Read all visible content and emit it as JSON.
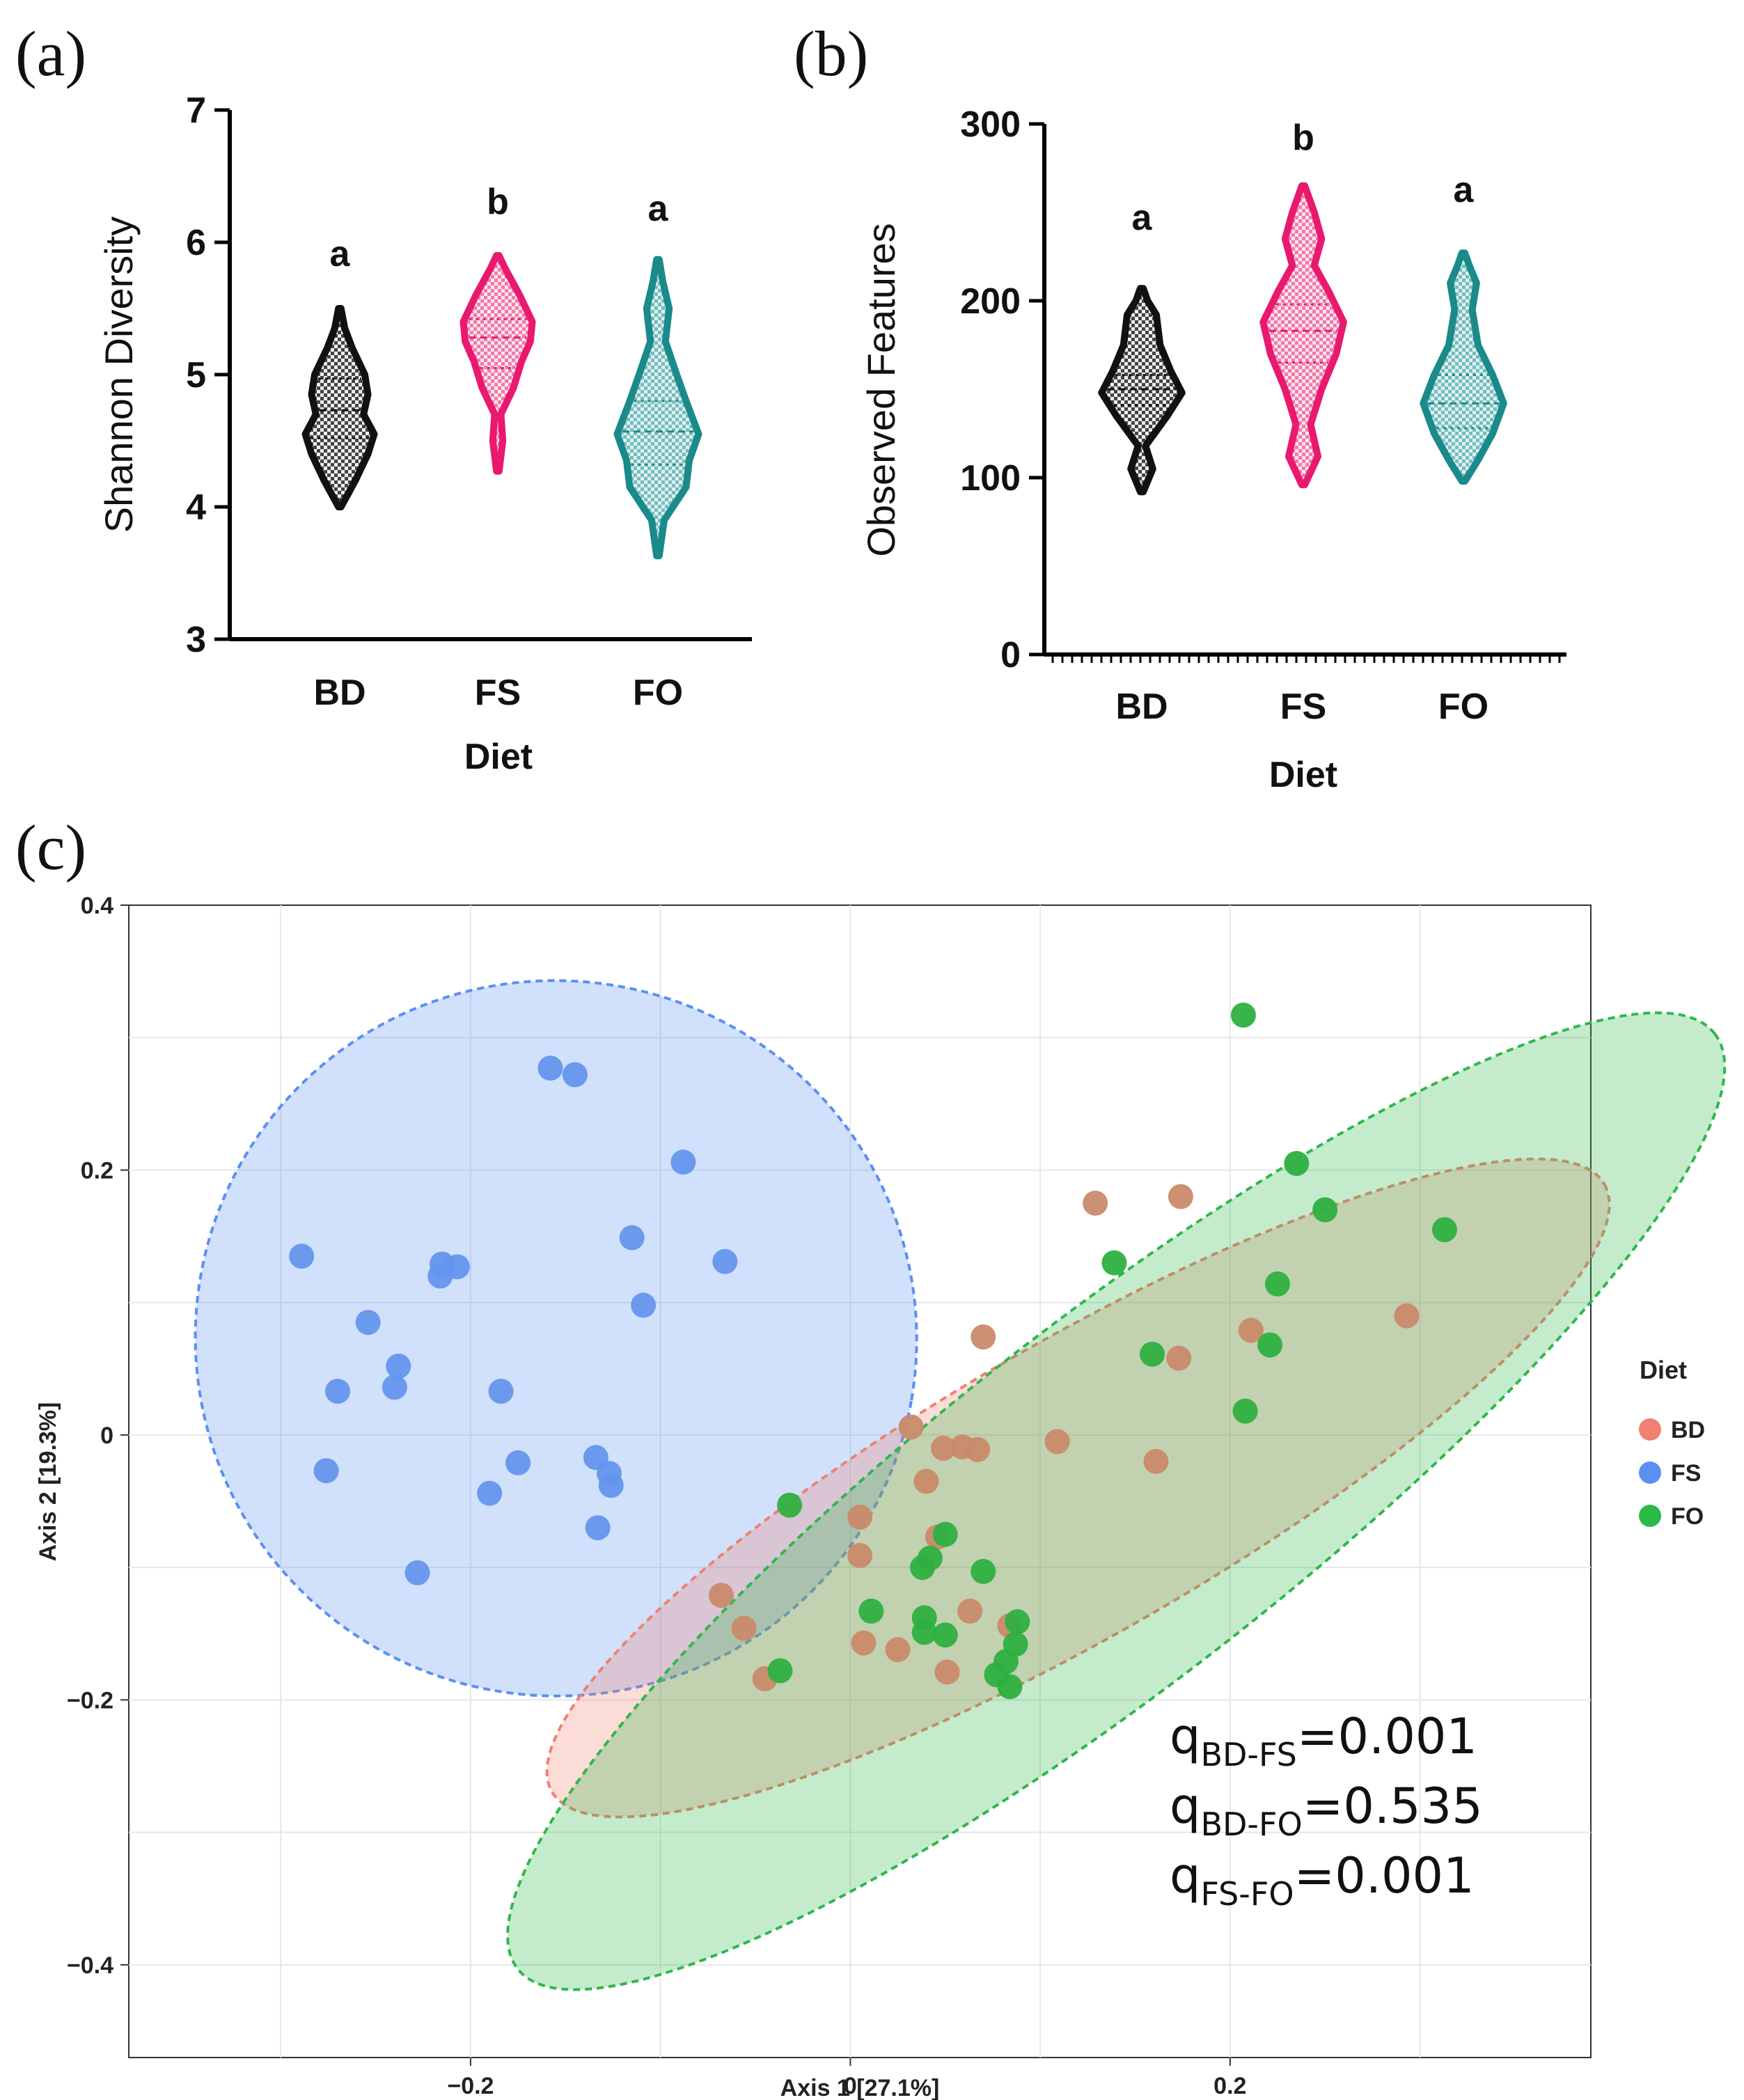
{
  "panels": {
    "a": "(a)",
    "b": "(b)",
    "c": "(c)"
  },
  "colors": {
    "BD_violin": "#111111",
    "FS_violin": "#e8196e",
    "FO_violin": "#1a8a8a",
    "BD_pcoa": "#f08070",
    "FS_pcoa": "#5b8ff2",
    "FO_pcoa": "#2db84a",
    "BD_point": "#c98a6a",
    "FS_point": "#6495ed",
    "FO_point": "#2eb040"
  },
  "chart_data": [
    {
      "type": "violin",
      "panel": "a",
      "ylabel": "Shannon Diversity",
      "xlabel": "Diet",
      "ylim": [
        3,
        7
      ],
      "yticks": [
        "3",
        "4",
        "5",
        "6",
        "7"
      ],
      "categories": [
        "BD",
        "FS",
        "FO"
      ],
      "significance": [
        "a",
        "b",
        "a"
      ],
      "series": [
        {
          "name": "BD",
          "min": 4.0,
          "max": 5.5,
          "median": 4.73,
          "q1": 4.52,
          "q3": 4.97,
          "profile": [
            [
              4.0,
              0.02
            ],
            [
              4.2,
              0.25
            ],
            [
              4.4,
              0.45
            ],
            [
              4.55,
              0.55
            ],
            [
              4.7,
              0.38
            ],
            [
              4.85,
              0.45
            ],
            [
              5.0,
              0.4
            ],
            [
              5.2,
              0.2
            ],
            [
              5.35,
              0.08
            ],
            [
              5.5,
              0.02
            ]
          ]
        },
        {
          "name": "FS",
          "min": 4.27,
          "max": 5.9,
          "median": 5.28,
          "q1": 5.05,
          "q3": 5.42,
          "profile": [
            [
              4.27,
              0.02
            ],
            [
              4.5,
              0.08
            ],
            [
              4.7,
              0.05
            ],
            [
              4.9,
              0.25
            ],
            [
              5.1,
              0.38
            ],
            [
              5.25,
              0.52
            ],
            [
              5.4,
              0.55
            ],
            [
              5.6,
              0.35
            ],
            [
              5.8,
              0.12
            ],
            [
              5.9,
              0.02
            ]
          ]
        },
        {
          "name": "FO",
          "min": 3.63,
          "max": 5.87,
          "median": 4.57,
          "q1": 4.32,
          "q3": 4.8,
          "profile": [
            [
              3.63,
              0.02
            ],
            [
              3.9,
              0.1
            ],
            [
              4.15,
              0.45
            ],
            [
              4.35,
              0.5
            ],
            [
              4.55,
              0.65
            ],
            [
              4.8,
              0.45
            ],
            [
              5.0,
              0.3
            ],
            [
              5.25,
              0.12
            ],
            [
              5.5,
              0.18
            ],
            [
              5.7,
              0.08
            ],
            [
              5.87,
              0.02
            ]
          ]
        }
      ]
    },
    {
      "type": "violin",
      "panel": "b",
      "ylabel": "Observed Features",
      "xlabel": "Diet",
      "ylim": [
        0,
        300
      ],
      "yticks": [
        "0",
        "100",
        "200",
        "300"
      ],
      "categories": [
        "BD",
        "FS",
        "FO"
      ],
      "significance": [
        "a",
        "b",
        "a"
      ],
      "series": [
        {
          "name": "BD",
          "min": 92,
          "max": 207,
          "median": 150,
          "q1": 141,
          "q3": 158,
          "profile": [
            [
              92,
              0.02
            ],
            [
              105,
              0.15
            ],
            [
              118,
              0.05
            ],
            [
              135,
              0.35
            ],
            [
              148,
              0.55
            ],
            [
              160,
              0.4
            ],
            [
              175,
              0.25
            ],
            [
              192,
              0.2
            ],
            [
              200,
              0.08
            ],
            [
              207,
              0.02
            ]
          ]
        },
        {
          "name": "FS",
          "min": 96,
          "max": 265,
          "median": 183,
          "q1": 165,
          "q3": 198,
          "profile": [
            [
              96,
              0.02
            ],
            [
              112,
              0.2
            ],
            [
              130,
              0.1
            ],
            [
              150,
              0.25
            ],
            [
              170,
              0.45
            ],
            [
              188,
              0.55
            ],
            [
              205,
              0.35
            ],
            [
              220,
              0.15
            ],
            [
              235,
              0.25
            ],
            [
              250,
              0.15
            ],
            [
              265,
              0.02
            ]
          ]
        },
        {
          "name": "FO",
          "min": 98,
          "max": 227,
          "median": 142,
          "q1": 128,
          "q3": 158,
          "profile": [
            [
              98,
              0.02
            ],
            [
              110,
              0.2
            ],
            [
              125,
              0.4
            ],
            [
              142,
              0.55
            ],
            [
              158,
              0.4
            ],
            [
              175,
              0.2
            ],
            [
              195,
              0.12
            ],
            [
              210,
              0.18
            ],
            [
              220,
              0.08
            ],
            [
              227,
              0.02
            ]
          ]
        }
      ]
    },
    {
      "type": "scatter",
      "panel": "c",
      "xlabel": "Axis 1 [27.1%]",
      "ylabel": "Axis 2 [19.3%]",
      "xlim": [
        -0.38,
        0.39
      ],
      "ylim": [
        -0.47,
        0.4
      ],
      "xticks": [
        "−0.2",
        "0",
        "0.2"
      ],
      "yticks": [
        "0.4",
        "0.2",
        "0",
        "−0.2",
        "−0.4"
      ],
      "legend_title": "Diet",
      "legend": [
        "BD",
        "FS",
        "FO"
      ],
      "ellipses": [
        {
          "name": "FS",
          "cx": -0.155,
          "cy": 0.073,
          "rx": 0.19,
          "ry": 0.27,
          "angle_deg": -10
        },
        {
          "name": "BD",
          "cx": 0.12,
          "cy": -0.04,
          "rx": 0.32,
          "ry": 0.11,
          "angle_deg": 30
        },
        {
          "name": "FO",
          "cx": 0.14,
          "cy": -0.05,
          "rx": 0.4,
          "ry": 0.135,
          "angle_deg": 38
        }
      ],
      "series": [
        {
          "name": "FS",
          "points": [
            [
              -0.158,
              0.277
            ],
            [
              -0.145,
              0.272
            ],
            [
              -0.088,
              0.206
            ],
            [
              -0.115,
              0.149
            ],
            [
              -0.066,
              0.131
            ],
            [
              -0.289,
              0.135
            ],
            [
              -0.215,
              0.129
            ],
            [
              -0.207,
              0.127
            ],
            [
              -0.216,
              0.12
            ],
            [
              -0.109,
              0.098
            ],
            [
              -0.254,
              0.085
            ],
            [
              -0.238,
              0.052
            ],
            [
              -0.27,
              0.033
            ],
            [
              -0.24,
              0.036
            ],
            [
              -0.184,
              0.033
            ],
            [
              -0.276,
              -0.027
            ],
            [
              -0.175,
              -0.021
            ],
            [
              -0.134,
              -0.017
            ],
            [
              -0.127,
              -0.029
            ],
            [
              -0.126,
              -0.038
            ],
            [
              -0.19,
              -0.044
            ],
            [
              -0.133,
              -0.07
            ],
            [
              -0.228,
              -0.104
            ]
          ]
        },
        {
          "name": "BD",
          "points": [
            [
              0.129,
              0.175
            ],
            [
              0.174,
              0.18
            ],
            [
              0.293,
              0.09
            ],
            [
              0.211,
              0.079
            ],
            [
              0.07,
              0.074
            ],
            [
              0.173,
              0.058
            ],
            [
              0.032,
              0.006
            ],
            [
              0.109,
              -0.005
            ],
            [
              0.049,
              -0.01
            ],
            [
              0.059,
              -0.009
            ],
            [
              0.067,
              -0.011
            ],
            [
              0.161,
              -0.02
            ],
            [
              0.04,
              -0.035
            ],
            [
              0.005,
              -0.062
            ],
            [
              0.046,
              -0.077
            ],
            [
              0.005,
              -0.091
            ],
            [
              -0.068,
              -0.121
            ],
            [
              0.063,
              -0.133
            ],
            [
              -0.056,
              -0.146
            ],
            [
              0.084,
              -0.144
            ],
            [
              0.007,
              -0.157
            ],
            [
              0.025,
              -0.162
            ],
            [
              0.051,
              -0.179
            ],
            [
              -0.045,
              -0.184
            ]
          ]
        },
        {
          "name": "FO",
          "points": [
            [
              0.207,
              0.317
            ],
            [
              0.235,
              0.205
            ],
            [
              0.25,
              0.17
            ],
            [
              0.313,
              0.155
            ],
            [
              0.139,
              0.13
            ],
            [
              0.225,
              0.114
            ],
            [
              0.221,
              0.068
            ],
            [
              0.159,
              0.061
            ],
            [
              0.208,
              0.018
            ],
            [
              -0.032,
              -0.053
            ],
            [
              0.05,
              -0.075
            ],
            [
              0.042,
              -0.093
            ],
            [
              0.038,
              -0.1
            ],
            [
              0.07,
              -0.103
            ],
            [
              0.011,
              -0.133
            ],
            [
              0.039,
              -0.138
            ],
            [
              0.088,
              -0.141
            ],
            [
              0.039,
              -0.149
            ],
            [
              0.05,
              -0.151
            ],
            [
              0.087,
              -0.158
            ],
            [
              0.082,
              -0.171
            ],
            [
              0.077,
              -0.181
            ],
            [
              -0.037,
              -0.178
            ],
            [
              0.084,
              -0.19
            ]
          ]
        }
      ],
      "annotations": [
        {
          "base": "q",
          "sub": "BD-FS",
          "value": "=0.001"
        },
        {
          "base": "q",
          "sub": "BD-FO",
          "value": "=0.535"
        },
        {
          "base": "q",
          "sub": "FS-FO",
          "value": "=0.001"
        }
      ]
    }
  ]
}
